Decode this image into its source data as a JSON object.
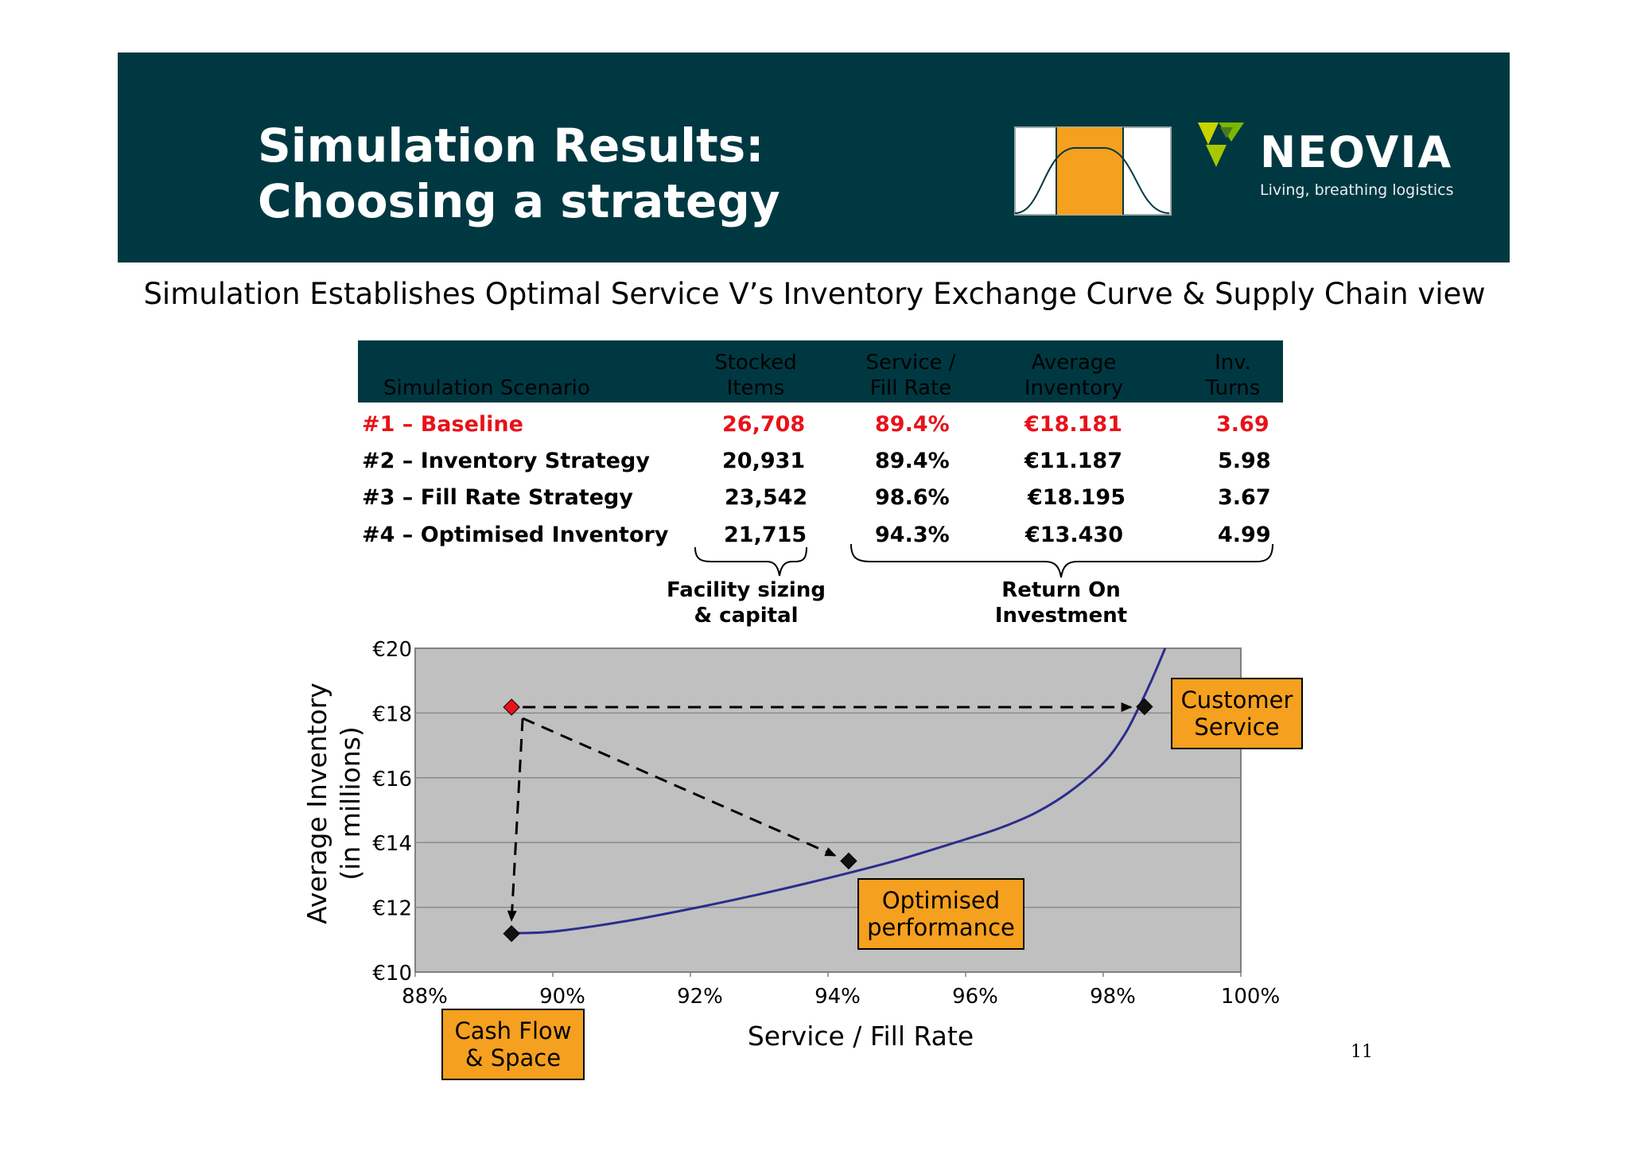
{
  "header": {
    "title_line1": "Simulation Results:",
    "title_line2": "Choosing a strategy",
    "logo_name": "NEOVIA",
    "logo_tagline": "Living, breathing logistics",
    "banner_color": "#003842",
    "accent_color": "#f5a01e"
  },
  "subtitle": "Simulation Establishes Optimal Service V’s Inventory Exchange Curve & Supply Chain view",
  "table": {
    "headers": {
      "scenario": "Simulation Scenario",
      "stocked_1": "Stocked",
      "stocked_2": "Items",
      "service_1": "Service /",
      "service_2": "Fill Rate",
      "average_1": "Average",
      "average_2": "Inventory",
      "turns_1": "Inv.",
      "turns_2": "Turns"
    },
    "rows": [
      {
        "scenario": "#1 – Baseline",
        "items": "26,708",
        "fill": "89.4%",
        "inventory": "€18.181",
        "turns": "3.69"
      },
      {
        "scenario": "#2 – Inventory Strategy",
        "items": "20,931",
        "fill": "89.4%",
        "inventory": "€11.187",
        "turns": "5.98"
      },
      {
        "scenario": "#3 – Fill Rate Strategy",
        "items": "23,542",
        "fill": "98.6%",
        "inventory": "€18.195",
        "turns": "3.67"
      },
      {
        "scenario": "#4 – Optimised Inventory",
        "items": "21,715",
        "fill": "94.3%",
        "inventory": "€13.430",
        "turns": "4.99"
      }
    ],
    "highlight_color": "#e8121a",
    "brace_left_1": "Facility sizing",
    "brace_left_2": "& capital",
    "brace_right_1": "Return On",
    "brace_right_2": "Investment"
  },
  "chart_data": {
    "type": "line",
    "xlabel": "Service / Fill Rate",
    "ylabel_1": "Average Inventory",
    "ylabel_2": "(in millions)",
    "xlim": [
      88,
      100
    ],
    "ylim": [
      10,
      20
    ],
    "x_ticks": [
      "88%",
      "90%",
      "92%",
      "94%",
      "96%",
      "98%",
      "100%"
    ],
    "y_ticks": [
      "€10",
      "€12",
      "€14",
      "€16",
      "€18",
      "€20"
    ],
    "grid": true,
    "plot_background": "#c0c0c0",
    "curve_color": "#2b2d8e",
    "curve": [
      [
        89.4,
        11.2
      ],
      [
        90.0,
        11.25
      ],
      [
        91.0,
        11.55
      ],
      [
        92.0,
        11.95
      ],
      [
        93.0,
        12.4
      ],
      [
        94.0,
        12.9
      ],
      [
        95.0,
        13.45
      ],
      [
        96.0,
        14.1
      ],
      [
        96.5,
        14.45
      ],
      [
        97.0,
        14.9
      ],
      [
        97.5,
        15.55
      ],
      [
        98.0,
        16.45
      ],
      [
        98.3,
        17.3
      ],
      [
        98.5,
        18.1
      ],
      [
        98.7,
        19.0
      ],
      [
        98.9,
        20.0
      ]
    ],
    "points": [
      {
        "x": 89.4,
        "y": 18.181,
        "color": "#e8121a"
      },
      {
        "x": 89.4,
        "y": 11.187,
        "color": "#111111"
      },
      {
        "x": 94.3,
        "y": 13.43,
        "color": "#111111"
      },
      {
        "x": 98.6,
        "y": 18.195,
        "color": "#111111"
      }
    ],
    "arrows": [
      {
        "from": [
          89.4,
          18.181
        ],
        "to": [
          98.4,
          18.181
        ]
      },
      {
        "from": [
          89.4,
          18.181
        ],
        "to": [
          89.4,
          11.6
        ]
      },
      {
        "from": [
          89.4,
          18.181
        ],
        "to": [
          94.1,
          13.6
        ]
      }
    ],
    "callouts": {
      "customer_1": "Customer",
      "customer_2": "Service",
      "optimised_1": "Optimised",
      "optimised_2": "performance",
      "cash_1": "Cash Flow",
      "cash_2": "& Space"
    }
  },
  "page_number": "11"
}
